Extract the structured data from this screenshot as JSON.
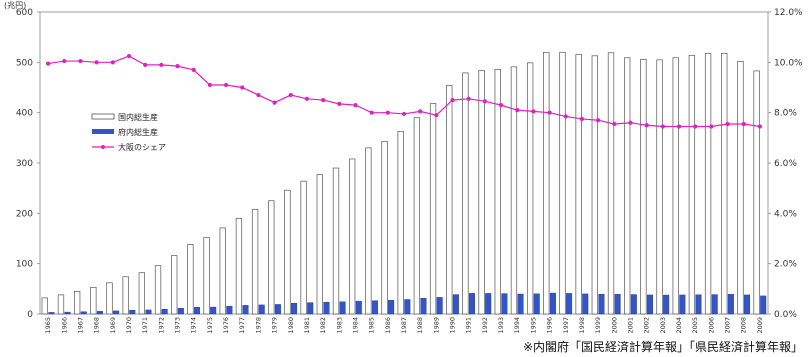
{
  "chart_data": {
    "type": "bar",
    "title": "",
    "y_left_unit": "(兆円)",
    "y_left_ticks": [
      "0",
      "100",
      "200",
      "300",
      "400",
      "500",
      "600"
    ],
    "y_right_ticks": [
      "0.0%",
      "2.0%",
      "4.0%",
      "6.0%",
      "8.0%",
      "10.0%",
      "12.0%"
    ],
    "ylim_left": [
      0,
      600
    ],
    "ylim_right": [
      0,
      12
    ],
    "categories": [
      "1965",
      "1966",
      "1967",
      "1968",
      "1969",
      "1970",
      "1971",
      "1972",
      "1973",
      "1974",
      "1975",
      "1976",
      "1977",
      "1978",
      "1979",
      "1980",
      "1981",
      "1982",
      "1983",
      "1984",
      "1985",
      "1986",
      "1987",
      "1988",
      "1989",
      "1990",
      "1991",
      "1992",
      "1993",
      "1994",
      "1995",
      "1996",
      "1997",
      "1998",
      "1999",
      "2000",
      "2001",
      "2002",
      "2003",
      "2004",
      "2005",
      "2006",
      "2007",
      "2008",
      "2009"
    ],
    "series": [
      {
        "name": "国内総生産",
        "type": "bar",
        "axis": "left",
        "color": "#ffffff",
        "values": [
          32,
          38,
          45,
          53,
          62,
          74,
          82,
          96,
          116,
          138,
          152,
          171,
          190,
          208,
          225,
          246,
          264,
          277,
          290,
          308,
          330,
          343,
          363,
          390,
          418,
          454,
          479,
          484,
          486,
          491,
          499,
          520,
          520,
          516,
          513,
          519,
          509,
          506,
          505,
          509,
          514,
          518,
          518,
          502,
          483
        ]
      },
      {
        "name": "府内総生産",
        "type": "bar",
        "axis": "left",
        "color": "#3355cc",
        "values": [
          3.2,
          3.8,
          4.5,
          5.3,
          6.2,
          7.6,
          8.1,
          9.5,
          11.4,
          13.4,
          13.8,
          15.6,
          17.1,
          18.1,
          19.0,
          21.4,
          22.6,
          23.5,
          24.3,
          25.6,
          26.5,
          27.5,
          28.8,
          31.4,
          33.0,
          38.6,
          41.0,
          40.9,
          40.5,
          39.7,
          40.1,
          41.6,
          40.9,
          40.0,
          39.4,
          39.2,
          38.7,
          37.9,
          37.6,
          37.9,
          38.3,
          38.6,
          39.2,
          37.9,
          36.0
        ]
      },
      {
        "name": "大阪のシェア",
        "type": "line",
        "axis": "right",
        "color": "#e020c0",
        "values": [
          9.95,
          10.05,
          10.05,
          10.0,
          10.0,
          10.25,
          9.9,
          9.9,
          9.85,
          9.7,
          9.1,
          9.1,
          9.0,
          8.7,
          8.4,
          8.7,
          8.55,
          8.5,
          8.35,
          8.3,
          8.0,
          8.0,
          7.95,
          8.05,
          7.9,
          8.5,
          8.55,
          8.45,
          8.3,
          8.1,
          8.05,
          8.0,
          7.85,
          7.75,
          7.7,
          7.55,
          7.6,
          7.5,
          7.45,
          7.45,
          7.45,
          7.45,
          7.55,
          7.55,
          7.45
        ]
      }
    ],
    "legend": [
      {
        "label": "国内総生産",
        "marker": "bar-outline",
        "color": "#555555"
      },
      {
        "label": "府内総生産",
        "marker": "bar-filled",
        "color": "#3355cc"
      },
      {
        "label": "大阪のシェア",
        "marker": "line-dot",
        "color": "#e020c0"
      }
    ],
    "legend_placement": "center-left",
    "grid": false
  },
  "source_note": "※内閣府「国民経済計算年報」「県民経済計算年報」"
}
